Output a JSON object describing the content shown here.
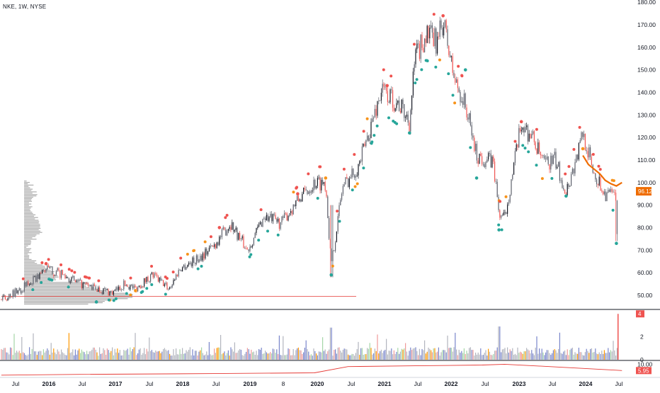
{
  "header": {
    "symbol_label": "NKE, 1W, NYSE"
  },
  "colors": {
    "up": "#26a69a",
    "down": "#ef5350",
    "candle_gray": "#5d606b",
    "orange": "#f7931a",
    "ema": "#ef6c00",
    "profile": "#9e9e9e",
    "poc_line": "#e53935",
    "separator": "#131722",
    "axis_text": "#131722"
  },
  "chart_data": [
    {
      "type": "candlestick",
      "title": "",
      "x_ticks": [
        "Jul",
        "2016",
        "Jul",
        "2017",
        "Jul",
        "2018",
        "Jul",
        "2019",
        "8",
        "2020",
        "Jul",
        "2021",
        "Jul",
        "2022",
        "Jul",
        "2023",
        "Jul",
        "2024",
        "Jul"
      ],
      "y_ticks": [
        50,
        60,
        70,
        80,
        90,
        100,
        110,
        120,
        130,
        140,
        150,
        160,
        170,
        180
      ],
      "ylim": [
        44,
        181
      ],
      "last_price_label": "96.12",
      "last_price": 96.12,
      "close_path": [
        [
          "2015-04",
          48
        ],
        [
          "2015-07",
          52
        ],
        [
          "2015-10",
          57
        ],
        [
          "2015-12",
          62
        ],
        [
          "2016-03",
          59
        ],
        [
          "2016-06",
          55
        ],
        [
          "2016-09",
          53
        ],
        [
          "2016-12",
          51
        ],
        [
          "2017-02",
          55
        ],
        [
          "2017-04",
          53
        ],
        [
          "2017-07",
          59
        ],
        [
          "2017-10",
          53
        ],
        [
          "2017-12",
          62
        ],
        [
          "2018-03",
          66
        ],
        [
          "2018-06",
          72
        ],
        [
          "2018-09",
          82
        ],
        [
          "2018-12",
          70
        ],
        [
          "2019-03",
          85
        ],
        [
          "2019-06",
          82
        ],
        [
          "2019-09",
          92
        ],
        [
          "2019-12",
          100
        ],
        [
          "2020-02",
          100
        ],
        [
          "2020-03",
          63
        ],
        [
          "2020-05",
          98
        ],
        [
          "2020-08",
          108
        ],
        [
          "2020-12",
          141
        ],
        [
          "2021-03",
          135
        ],
        [
          "2021-05",
          127
        ],
        [
          "2021-06",
          155
        ],
        [
          "2021-08",
          166
        ],
        [
          "2021-10",
          162
        ],
        [
          "2021-11",
          172
        ],
        [
          "2022-01",
          146
        ],
        [
          "2022-03",
          134
        ],
        [
          "2022-05",
          112
        ],
        [
          "2022-08",
          109
        ],
        [
          "2022-09",
          86
        ],
        [
          "2022-10",
          84
        ],
        [
          "2023-01",
          126
        ],
        [
          "2023-03",
          120
        ],
        [
          "2023-05",
          108
        ],
        [
          "2023-07",
          110
        ],
        [
          "2023-09",
          96
        ],
        [
          "2023-11",
          112
        ],
        [
          "2023-12",
          122
        ],
        [
          "2024-02",
          104
        ],
        [
          "2024-04",
          95
        ],
        [
          "2024-06",
          94
        ],
        [
          "2024-06",
          75
        ]
      ],
      "ema_series": [
        [
          "2023-12",
          112
        ],
        [
          "2024-01",
          108
        ],
        [
          "2024-02",
          106
        ],
        [
          "2024-03",
          104
        ],
        [
          "2024-04",
          101
        ],
        [
          "2024-05",
          99.5
        ],
        [
          "2024-06",
          98.5
        ],
        [
          "2024-07",
          100
        ]
      ],
      "poc_level": 49.5,
      "poc_range": [
        "2015-04",
        "2020-07"
      ],
      "signal_dots": [
        {
          "date": "2015-12",
          "price": 64,
          "kind": "top"
        },
        {
          "date": "2016-09",
          "price": 47,
          "kind": "bottom"
        },
        {
          "date": "2017-04",
          "price": 52,
          "kind": "orange"
        },
        {
          "date": "2018-07",
          "price": 80,
          "kind": "top"
        },
        {
          "date": "2019-09",
          "price": 95,
          "kind": "top"
        },
        {
          "date": "2020-02",
          "price": 102,
          "kind": "orange"
        },
        {
          "date": "2020-03",
          "price": 59,
          "kind": "bottom"
        },
        {
          "date": "2021-01",
          "price": 143,
          "kind": "top"
        },
        {
          "date": "2021-05",
          "price": 122,
          "kind": "bottom"
        },
        {
          "date": "2021-11",
          "price": 174,
          "kind": "top"
        },
        {
          "date": "2022-03",
          "price": 150,
          "kind": "bottom"
        },
        {
          "date": "2022-05",
          "price": 102,
          "kind": "bottom"
        },
        {
          "date": "2022-09",
          "price": 79,
          "kind": "bottom"
        },
        {
          "date": "2023-01",
          "price": 127,
          "kind": "top"
        },
        {
          "date": "2023-09",
          "price": 94,
          "kind": "bottom"
        },
        {
          "date": "2023-12",
          "price": 115,
          "kind": "orange"
        },
        {
          "date": "2024-06",
          "price": 73,
          "kind": "bottom"
        }
      ]
    },
    {
      "type": "bar",
      "title": "",
      "y_ticks": [
        0,
        2
      ],
      "ylim": [
        0,
        4.2
      ],
      "last_value_label": "4"
    },
    {
      "type": "line",
      "title": "",
      "y_ticks": [
        10
      ],
      "ylim": [
        2,
        12
      ],
      "last_value_label": "5.95",
      "series": [
        {
          "values": [
            [
              "2015-04",
              3
            ],
            [
              "2016-06",
              3.5
            ],
            [
              "2018-06",
              4
            ],
            [
              "2019-12",
              4.5
            ],
            [
              "2020-06",
              8.5
            ],
            [
              "2021-06",
              9
            ],
            [
              "2022-06",
              9.5
            ],
            [
              "2022-10",
              10
            ],
            [
              "2023-06",
              8.5
            ],
            [
              "2024-06",
              6.2
            ],
            [
              "2024-07",
              5.95
            ]
          ]
        }
      ]
    }
  ]
}
